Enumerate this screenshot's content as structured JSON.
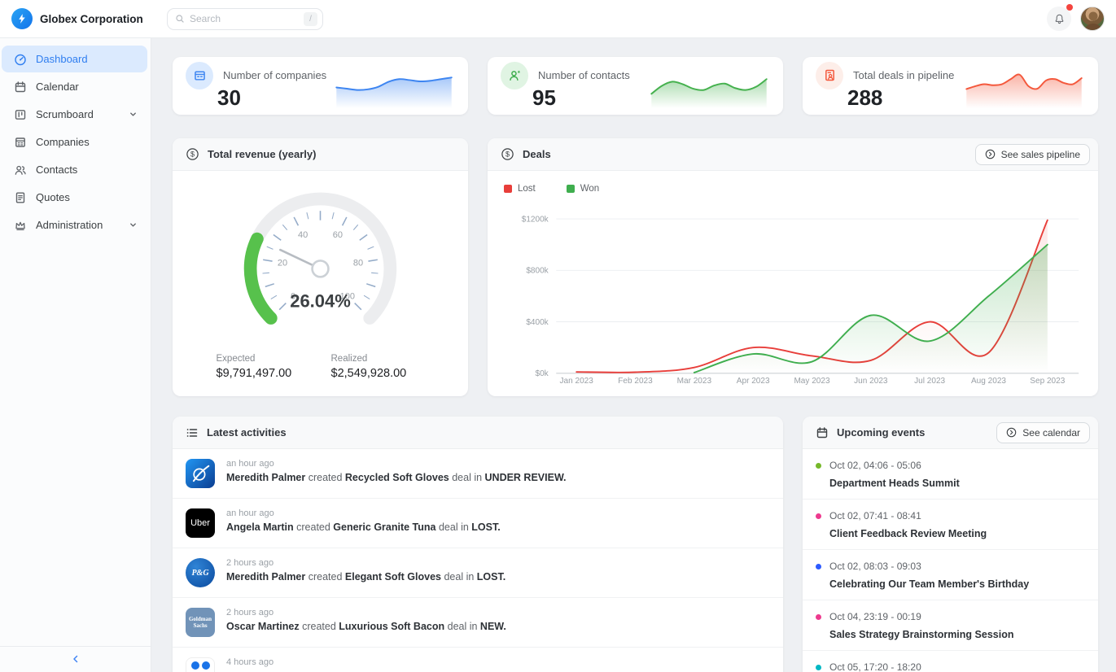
{
  "topbar": {
    "brand": "Globex Corporation",
    "search_placeholder": "Search",
    "search_shortcut": "/"
  },
  "sidebar": {
    "items": [
      {
        "label": "Dashboard",
        "active": true
      },
      {
        "label": "Calendar"
      },
      {
        "label": "Scrumboard",
        "expandable": true
      },
      {
        "label": "Companies"
      },
      {
        "label": "Contacts"
      },
      {
        "label": "Quotes"
      },
      {
        "label": "Administration",
        "expandable": true
      }
    ]
  },
  "stats": [
    {
      "title": "Number of companies",
      "value": "30",
      "accent": "#3d85f1",
      "icon_bg": "#dbeafe"
    },
    {
      "title": "Number of contacts",
      "value": "95",
      "accent": "#3fae4e",
      "icon_bg": "#e0f4e3"
    },
    {
      "title": "Total deals in pipeline",
      "value": "288",
      "accent": "#f4583c",
      "icon_bg": "#fdeee9"
    }
  ],
  "revenue": {
    "title": "Total revenue (yearly)",
    "expected_label": "Expected",
    "expected_value": "$9,791,497.00",
    "realized_label": "Realized",
    "realized_value": "$2,549,928.00"
  },
  "deals": {
    "title": "Deals",
    "button_label": "See sales pipeline",
    "legend": [
      {
        "label": "Lost",
        "color": "#e83e3a"
      },
      {
        "label": "Won",
        "color": "#3fae4e"
      }
    ]
  },
  "activities": {
    "title": "Latest activities",
    "items": [
      {
        "logo": "boeing",
        "time": "an hour ago",
        "actor": "Meredith Palmer",
        "action": "created",
        "deal": "Recycled Soft Gloves",
        "connector": "deal in",
        "status": "UNDER REVIEW."
      },
      {
        "logo": "uber",
        "time": "an hour ago",
        "actor": "Angela Martin",
        "action": "created",
        "deal": "Generic Granite Tuna",
        "connector": "deal in",
        "status": "LOST."
      },
      {
        "logo": "pg",
        "time": "2 hours ago",
        "actor": "Meredith Palmer",
        "action": "created",
        "deal": "Elegant Soft Gloves",
        "connector": "deal in",
        "status": "LOST."
      },
      {
        "logo": "goldman",
        "time": "2 hours ago",
        "actor": "Oscar Martinez",
        "action": "created",
        "deal": "Luxurious Soft Bacon",
        "connector": "deal in",
        "status": "NEW."
      },
      {
        "logo": "dots",
        "time": "4 hours ago",
        "actor": "",
        "action": "",
        "deal": "",
        "connector": "",
        "status": ""
      }
    ]
  },
  "events": {
    "title": "Upcoming events",
    "button_label": "See calendar",
    "items": [
      {
        "color": "#76b82a",
        "date": "Oct 02, 04:06 - 05:06",
        "title": "Department Heads Summit"
      },
      {
        "color": "#ed3a8e",
        "date": "Oct 02, 07:41 - 08:41",
        "title": "Client Feedback Review Meeting"
      },
      {
        "color": "#2d5bff",
        "date": "Oct 02, 08:03 - 09:03",
        "title": "Celebrating Our Team Member's Birthday"
      },
      {
        "color": "#ed3a8e",
        "date": "Oct 04, 23:19 - 00:19",
        "title": "Sales Strategy Brainstorming Session"
      },
      {
        "color": "#00b8c4",
        "date": "Oct 05, 17:20 - 18:20",
        "title": ""
      }
    ]
  },
  "chart_data": [
    {
      "id": "deals-by-month",
      "type": "line",
      "title": "Deals",
      "categories": [
        "Jan 2023",
        "Feb 2023",
        "Mar 2023",
        "Apr 2023",
        "May 2023",
        "Jun 2023",
        "Jul 2023",
        "Aug 2023",
        "Sep 2023"
      ],
      "series": [
        {
          "name": "Lost",
          "color": "#e83e3a",
          "fill_opacity": 0.12,
          "values": [
            10,
            8,
            45,
            200,
            135,
            100,
            400,
            160,
            1190
          ]
        },
        {
          "name": "Won",
          "color": "#3fae4e",
          "fill_opacity": 0.3,
          "values": [
            null,
            null,
            5,
            150,
            90,
            450,
            250,
            600,
            1000
          ]
        }
      ],
      "ylim": [
        0,
        1200
      ],
      "yticks": [
        "$0k",
        "$400k",
        "$800k",
        "$1200k"
      ],
      "unit": "USD thousands",
      "grid": true,
      "legend_position": "top-left"
    },
    {
      "id": "revenue-gauge",
      "type": "gauge",
      "value": 26.04,
      "label": "26.04%",
      "min": 0,
      "max": 100,
      "tick_labels": [
        0,
        20,
        40,
        60,
        80,
        100
      ],
      "color": "#57c14c"
    },
    {
      "id": "companies-sparkline",
      "type": "area-sparkline",
      "color": "#3d85f1",
      "values": [
        5,
        4.6,
        4.2,
        4.4,
        5.2,
        6.8,
        7.6,
        7.3,
        6.9,
        7.1,
        7.6,
        8.1
      ]
    },
    {
      "id": "contacts-sparkline",
      "type": "area-sparkline",
      "color": "#45b14e",
      "values": [
        3,
        5.5,
        6.8,
        6,
        4.6,
        4.2,
        5.6,
        6.2,
        4.8,
        4.2,
        5.2,
        7.6
      ]
    },
    {
      "id": "pipeline-sparkline",
      "type": "area-sparkline",
      "color": "#f4583c",
      "values": [
        4.5,
        5.4,
        6,
        5.7,
        6,
        7.6,
        9,
        5.4,
        4.6,
        7.2,
        7.6,
        6.4,
        6,
        7.9
      ]
    }
  ]
}
